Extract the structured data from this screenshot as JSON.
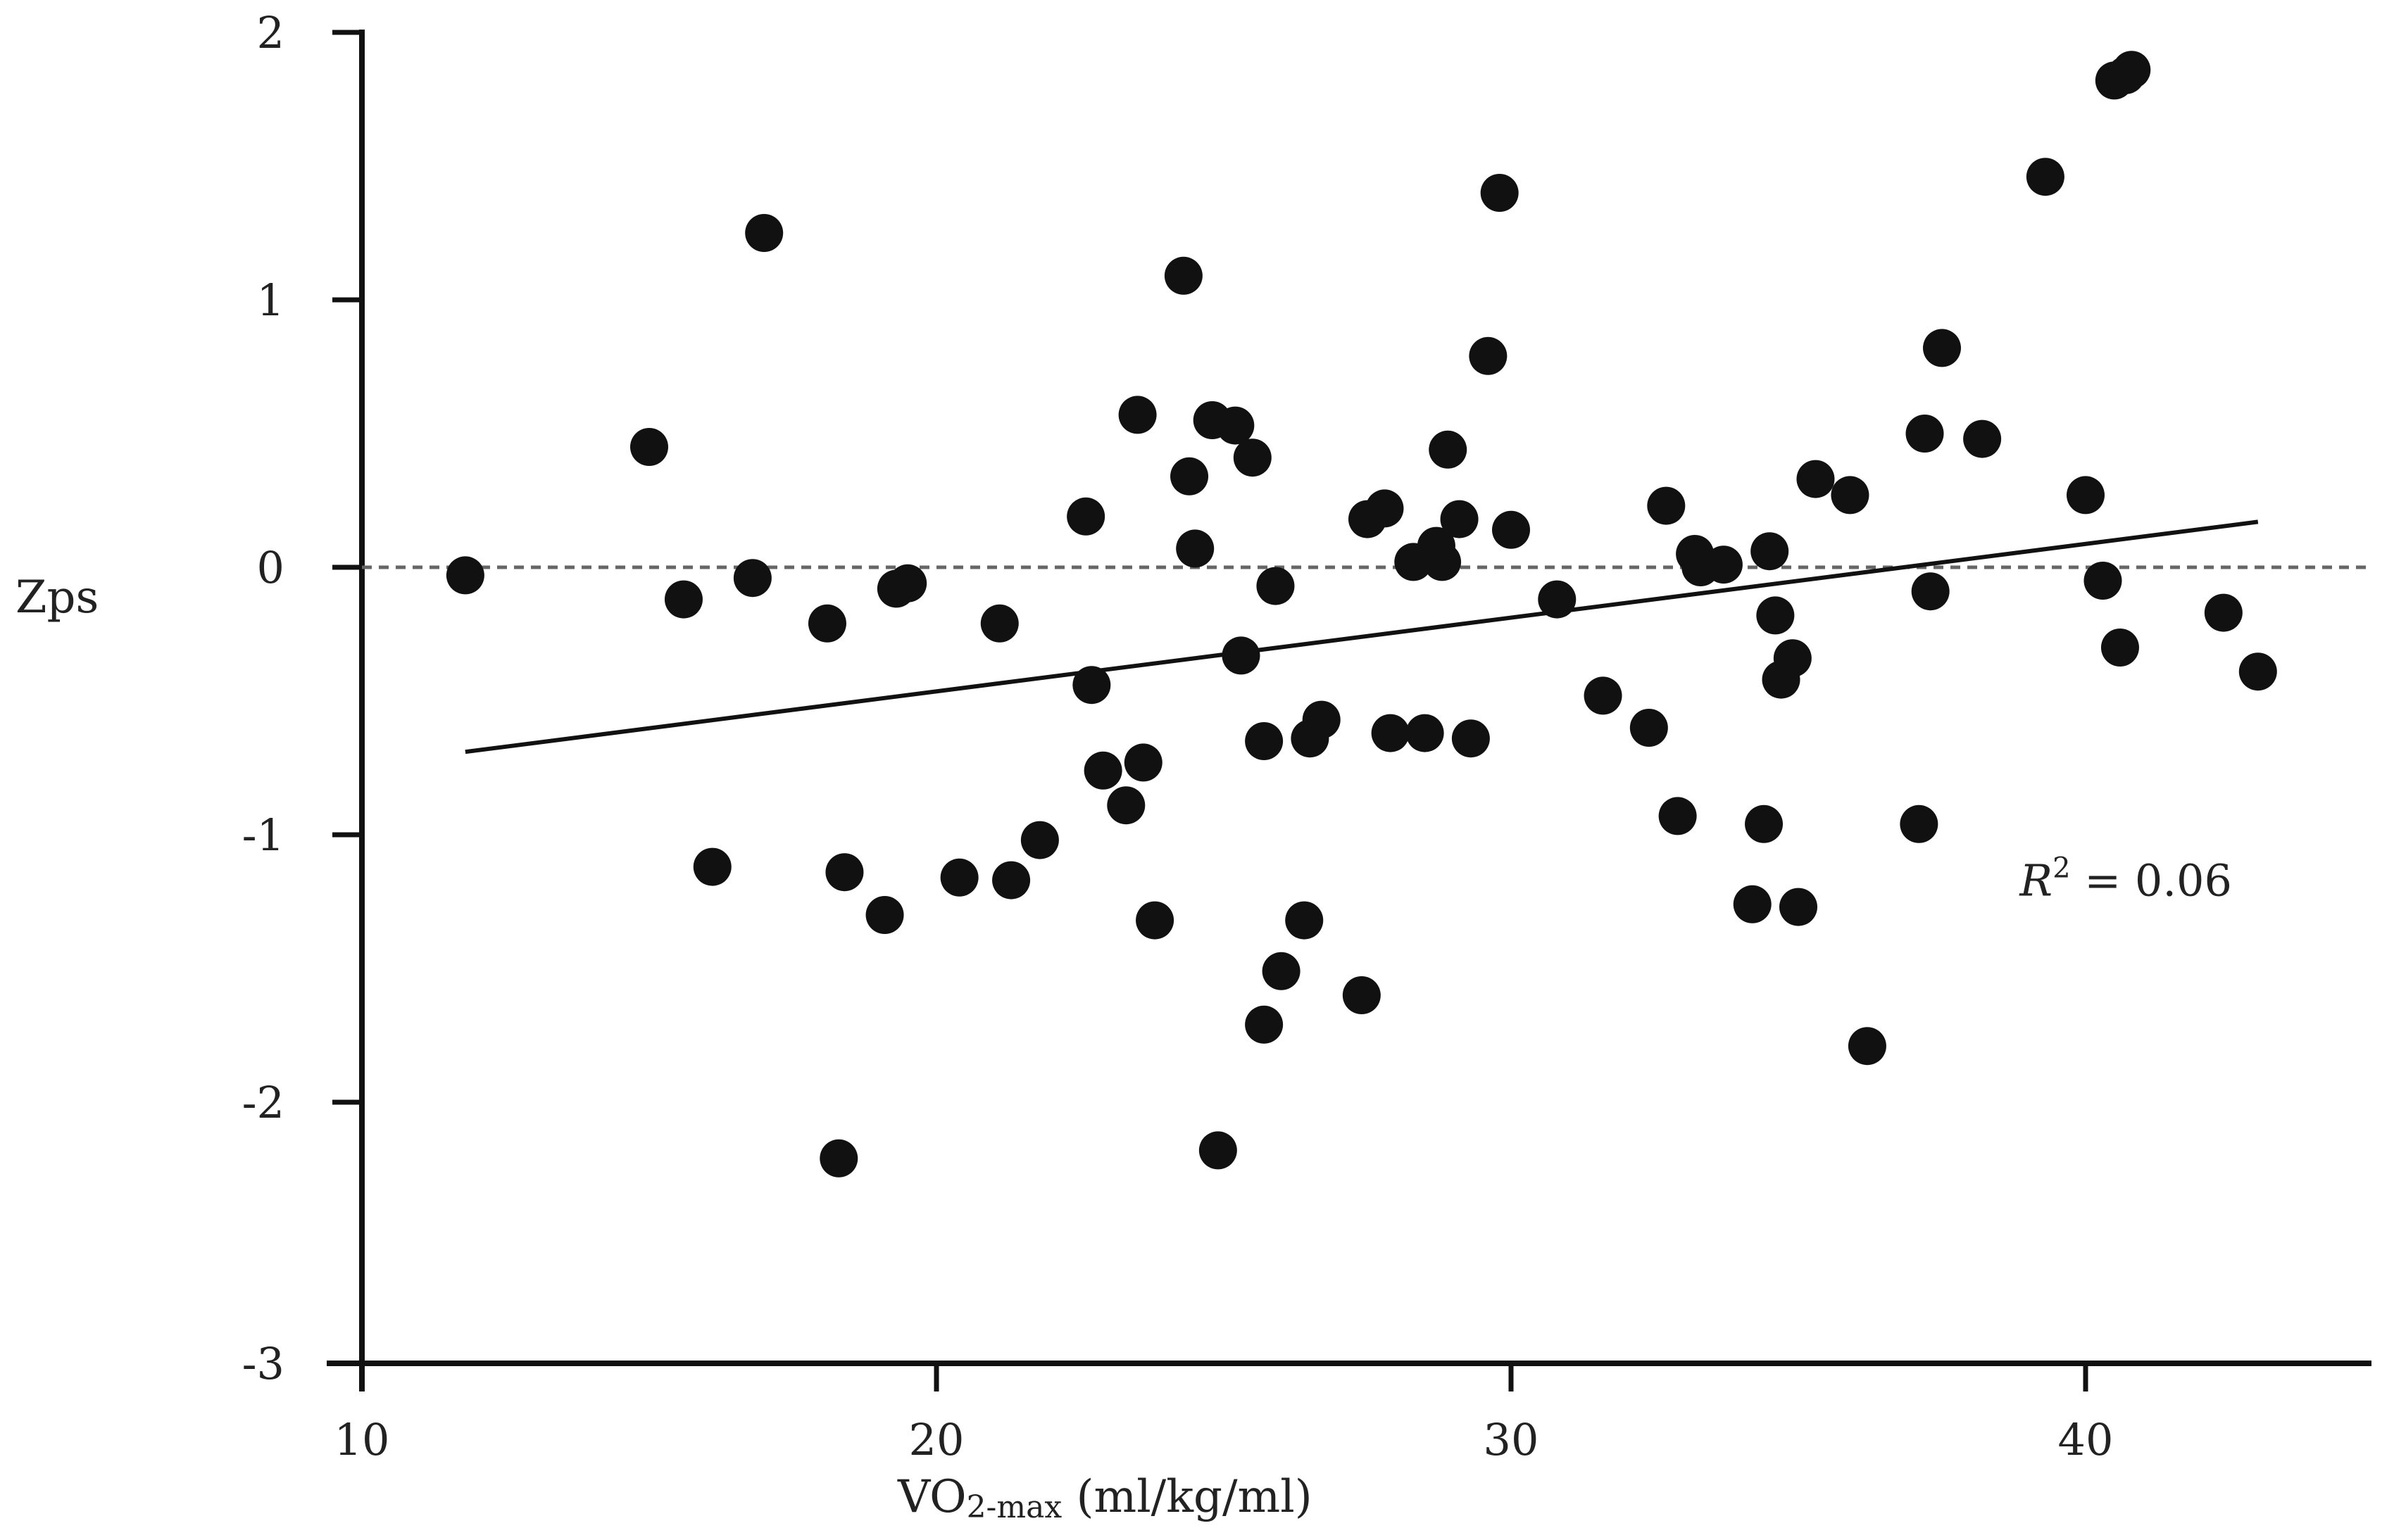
{
  "chart_data": {
    "type": "scatter",
    "title": "",
    "xlabel": {
      "main": "VO",
      "sub": "2-max",
      "rest": " (ml/kg/ml)"
    },
    "ylabel": "Zps",
    "xlim": [
      10,
      45
    ],
    "ylim": [
      -3,
      2
    ],
    "xticks": [
      "10",
      "20",
      "30",
      "40"
    ],
    "yticks": [
      "2",
      "1",
      "0",
      "-1",
      "-2",
      "-3"
    ],
    "reference_line": {
      "y": 0,
      "style": "dashed"
    },
    "trend_line": {
      "x": [
        11.8,
        43
      ],
      "y": [
        -0.69,
        0.17
      ]
    },
    "annotation": {
      "label": "R",
      "superscript": "2",
      "value": " = 0.06",
      "x": 39,
      "y": -1.17
    },
    "grid": false,
    "points": [
      {
        "x": 11.8,
        "y": -0.03
      },
      {
        "x": 15.0,
        "y": 0.45
      },
      {
        "x": 15.6,
        "y": -0.12
      },
      {
        "x": 16.1,
        "y": -1.12
      },
      {
        "x": 16.8,
        "y": -0.04
      },
      {
        "x": 17.0,
        "y": 1.25
      },
      {
        "x": 18.1,
        "y": -0.21
      },
      {
        "x": 18.3,
        "y": -2.21
      },
      {
        "x": 18.4,
        "y": -1.14
      },
      {
        "x": 19.1,
        "y": -1.3
      },
      {
        "x": 19.3,
        "y": -0.08
      },
      {
        "x": 19.5,
        "y": -0.06
      },
      {
        "x": 20.4,
        "y": -1.16
      },
      {
        "x": 21.1,
        "y": -0.21
      },
      {
        "x": 21.3,
        "y": -1.17
      },
      {
        "x": 21.8,
        "y": -1.02
      },
      {
        "x": 22.6,
        "y": 0.19
      },
      {
        "x": 22.7,
        "y": -0.44
      },
      {
        "x": 22.9,
        "y": -0.76
      },
      {
        "x": 23.3,
        "y": -0.89
      },
      {
        "x": 23.5,
        "y": 0.57
      },
      {
        "x": 23.6,
        "y": -0.73
      },
      {
        "x": 23.8,
        "y": -1.32
      },
      {
        "x": 24.3,
        "y": 1.09
      },
      {
        "x": 24.4,
        "y": 0.34
      },
      {
        "x": 24.5,
        "y": 0.07
      },
      {
        "x": 24.8,
        "y": 0.55
      },
      {
        "x": 24.9,
        "y": -2.18
      },
      {
        "x": 25.2,
        "y": 0.53
      },
      {
        "x": 25.3,
        "y": -0.33
      },
      {
        "x": 25.5,
        "y": 0.41
      },
      {
        "x": 25.7,
        "y": -1.71
      },
      {
        "x": 25.7,
        "y": -0.65
      },
      {
        "x": 25.9,
        "y": -0.07
      },
      {
        "x": 26.0,
        "y": -1.51
      },
      {
        "x": 26.4,
        "y": -1.32
      },
      {
        "x": 26.5,
        "y": -0.64
      },
      {
        "x": 26.7,
        "y": -0.57
      },
      {
        "x": 27.4,
        "y": -1.6
      },
      {
        "x": 27.5,
        "y": 0.18
      },
      {
        "x": 27.8,
        "y": 0.22
      },
      {
        "x": 27.9,
        "y": -0.62
      },
      {
        "x": 28.3,
        "y": 0.02
      },
      {
        "x": 28.5,
        "y": -0.62
      },
      {
        "x": 28.7,
        "y": 0.08
      },
      {
        "x": 28.8,
        "y": 0.02
      },
      {
        "x": 28.9,
        "y": 0.44
      },
      {
        "x": 29.1,
        "y": 0.18
      },
      {
        "x": 29.3,
        "y": -0.64
      },
      {
        "x": 29.6,
        "y": 0.79
      },
      {
        "x": 29.8,
        "y": 1.4
      },
      {
        "x": 30.0,
        "y": 0.14
      },
      {
        "x": 30.8,
        "y": -0.12
      },
      {
        "x": 31.6,
        "y": -0.48
      },
      {
        "x": 32.4,
        "y": -0.6
      },
      {
        "x": 32.7,
        "y": 0.23
      },
      {
        "x": 32.9,
        "y": -0.93
      },
      {
        "x": 33.2,
        "y": 0.05
      },
      {
        "x": 33.3,
        "y": 0.0
      },
      {
        "x": 33.7,
        "y": 0.01
      },
      {
        "x": 34.2,
        "y": -1.26
      },
      {
        "x": 34.4,
        "y": -0.96
      },
      {
        "x": 34.5,
        "y": 0.06
      },
      {
        "x": 34.6,
        "y": -0.18
      },
      {
        "x": 34.7,
        "y": -0.42
      },
      {
        "x": 34.9,
        "y": -0.34
      },
      {
        "x": 35.0,
        "y": -1.27
      },
      {
        "x": 35.3,
        "y": 0.33
      },
      {
        "x": 35.9,
        "y": 0.27
      },
      {
        "x": 36.2,
        "y": -1.79
      },
      {
        "x": 37.1,
        "y": -0.96
      },
      {
        "x": 37.2,
        "y": 0.5
      },
      {
        "x": 37.3,
        "y": -0.09
      },
      {
        "x": 37.5,
        "y": 0.82
      },
      {
        "x": 38.2,
        "y": 0.48
      },
      {
        "x": 39.3,
        "y": 1.46
      },
      {
        "x": 40.0,
        "y": 0.27
      },
      {
        "x": 40.3,
        "y": -0.05
      },
      {
        "x": 40.5,
        "y": 1.82
      },
      {
        "x": 40.6,
        "y": -0.3
      },
      {
        "x": 40.7,
        "y": 1.84
      },
      {
        "x": 40.8,
        "y": 1.86
      },
      {
        "x": 42.4,
        "y": -0.17
      },
      {
        "x": 43.0,
        "y": -0.39
      }
    ]
  },
  "colors": {
    "points": "#111111",
    "axis": "#111111",
    "trend": "#111111",
    "reference": "#666666"
  }
}
